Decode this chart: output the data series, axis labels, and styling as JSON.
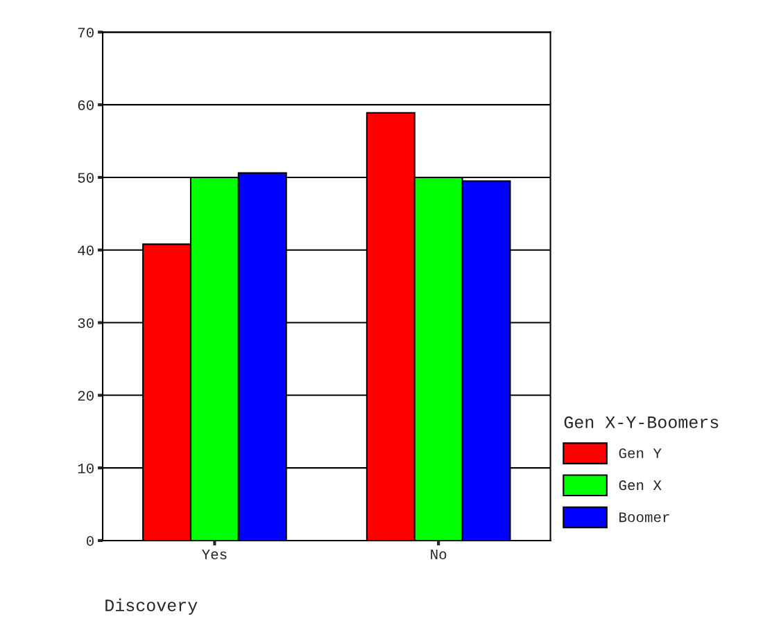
{
  "chart_data": {
    "type": "bar",
    "xlabel": "Discovery",
    "legend_title": "Gen X-Y-Boomers",
    "categories": [
      "Yes",
      "No"
    ],
    "series": [
      {
        "name": "Gen Y",
        "color": "#ff0000",
        "values": [
          40.8,
          58.9
        ]
      },
      {
        "name": "Gen X",
        "color": "#00ff00",
        "values": [
          50.0,
          50.0
        ]
      },
      {
        "name": "Boomer",
        "color": "#0000ff",
        "values": [
          50.6,
          49.5
        ]
      }
    ],
    "ylim": [
      0,
      70
    ],
    "yticks": [
      0,
      10,
      20,
      30,
      40,
      50,
      60,
      70
    ],
    "grid": "y",
    "legend": "right"
  }
}
